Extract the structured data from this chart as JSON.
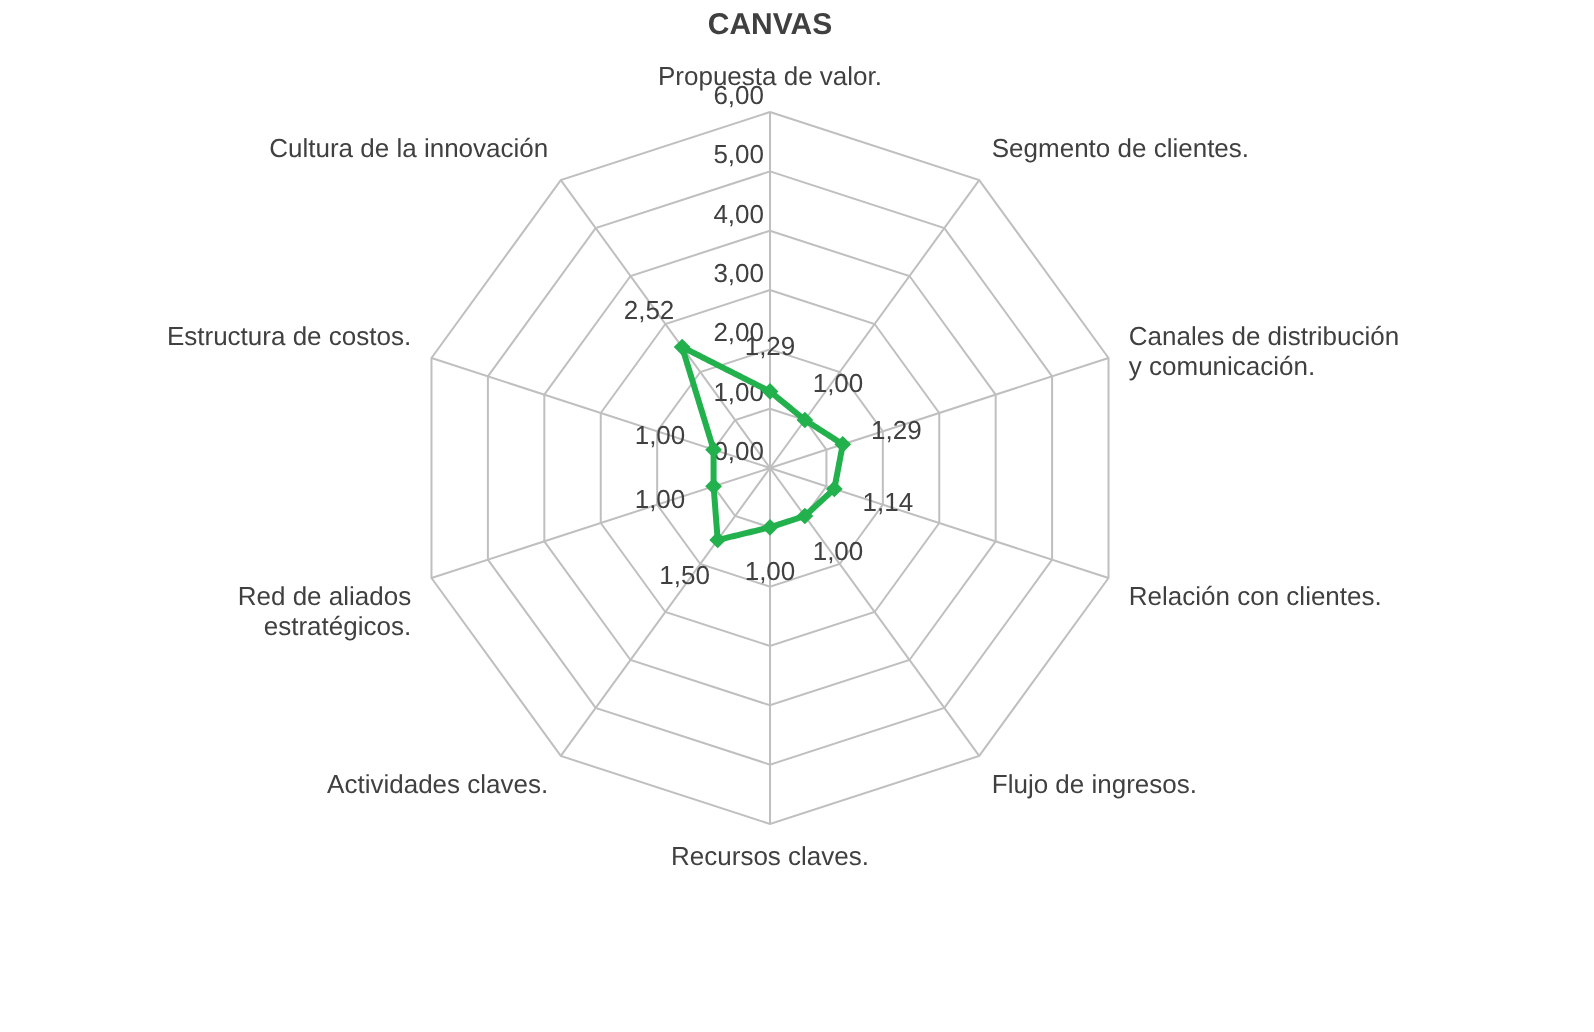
{
  "chart_data": {
    "type": "radar",
    "title": "CANVAS",
    "categories": [
      "Propuesta de valor.",
      "Segmento de clientes.",
      "Canales de distribución y comunicación.",
      "Relación con clientes.",
      "Flujo de ingresos.",
      "Recursos claves.",
      "Actividades claves.",
      "Red de aliados estratégicos.",
      "Estructura de costos.",
      "Cultura de la innovación"
    ],
    "series": [
      {
        "color": "#22b14c",
        "values": [
          1.29,
          1.0,
          1.29,
          1.14,
          1.0,
          1.0,
          1.5,
          1.0,
          1.0,
          2.52
        ],
        "value_labels": [
          "1,29",
          "1,00",
          "1,29",
          "1,14",
          "1,00",
          "1,00",
          "1,50",
          "1,00",
          "1,00",
          "2,52"
        ]
      }
    ],
    "ylim": [
      0,
      6
    ],
    "yticks": [
      {
        "value": 0,
        "label": "0,00"
      },
      {
        "value": 1,
        "label": "1,00"
      },
      {
        "value": 2,
        "label": "2,00"
      },
      {
        "value": 3,
        "label": "3,00"
      },
      {
        "value": 4,
        "label": "4,00"
      },
      {
        "value": 5,
        "label": "5,00"
      },
      {
        "value": 6,
        "label": "6,00"
      }
    ],
    "grid": true,
    "marker": "diamond",
    "line_style": "solid"
  }
}
